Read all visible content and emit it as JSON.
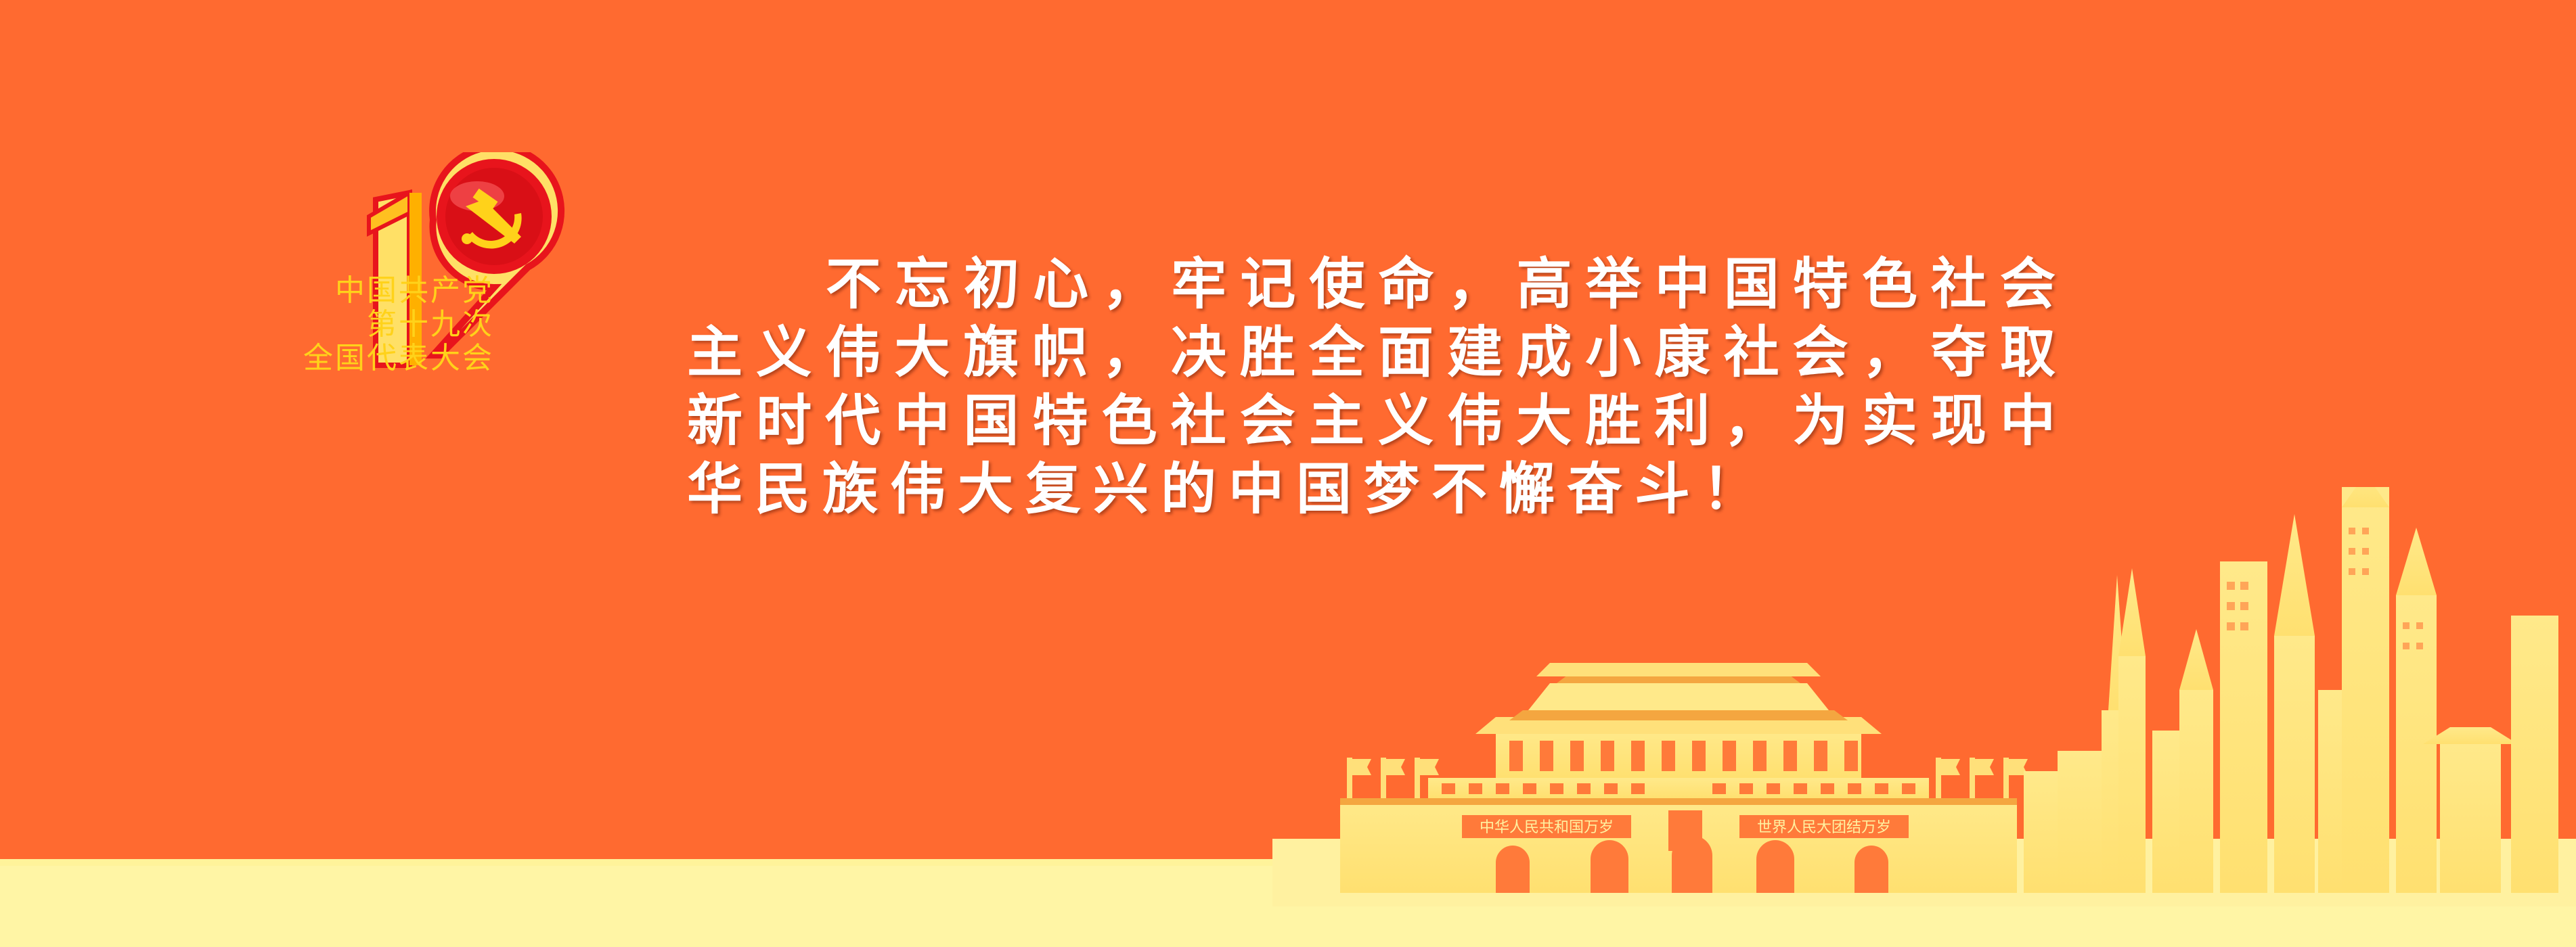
{
  "logo": {
    "line1": "中国共产党",
    "line2": "第十九次",
    "line3": "全国代表大会",
    "emblem": "hammer-sickle-icon"
  },
  "slogan": {
    "text": "不忘初心，牢记使命，高举中国特色社会主义伟大旗帜，决胜全面建成小康社会，夺取新时代中国特色社会主义伟大胜利，为实现中华民族伟大复兴的中国梦不懈奋斗！"
  },
  "tiananmen": {
    "banner_left": "中华人民共和国万岁",
    "banner_right": "世界人民大团结万岁"
  },
  "colors": {
    "background": "#ff6a30",
    "gold": "#ffd21a",
    "cream": "#fff5a5",
    "red": "#e8141c"
  }
}
